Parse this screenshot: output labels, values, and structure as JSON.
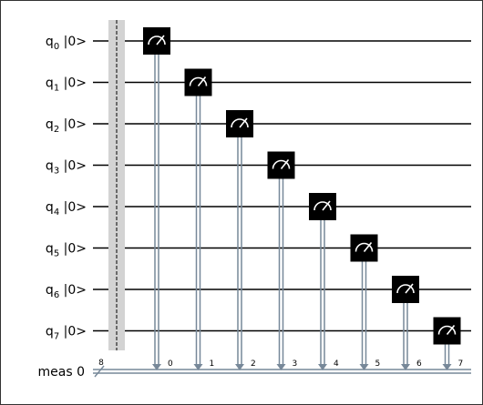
{
  "circuit": {
    "qubits": [
      {
        "name": "q",
        "index": "0",
        "state": "|0>"
      },
      {
        "name": "q",
        "index": "1",
        "state": "|0>"
      },
      {
        "name": "q",
        "index": "2",
        "state": "|0>"
      },
      {
        "name": "q",
        "index": "3",
        "state": "|0>"
      },
      {
        "name": "q",
        "index": "4",
        "state": "|0>"
      },
      {
        "name": "q",
        "index": "5",
        "state": "|0>"
      },
      {
        "name": "q",
        "index": "6",
        "state": "|0>"
      },
      {
        "name": "q",
        "index": "7",
        "state": "|0>"
      }
    ],
    "classical_register": {
      "label": "meas 0",
      "width": "8"
    },
    "measurements": [
      {
        "qubit": 0,
        "bit": "0"
      },
      {
        "qubit": 1,
        "bit": "1"
      },
      {
        "qubit": 2,
        "bit": "2"
      },
      {
        "qubit": 3,
        "bit": "3"
      },
      {
        "qubit": 4,
        "bit": "4"
      },
      {
        "qubit": 5,
        "bit": "5"
      },
      {
        "qubit": 6,
        "bit": "6"
      },
      {
        "qubit": 7,
        "bit": "7"
      }
    ],
    "colors": {
      "wire": "#000000",
      "classical": "#778899",
      "barrier": "#d3d3d3",
      "gate": "#000000",
      "gate_symbol": "#ffffff"
    }
  }
}
